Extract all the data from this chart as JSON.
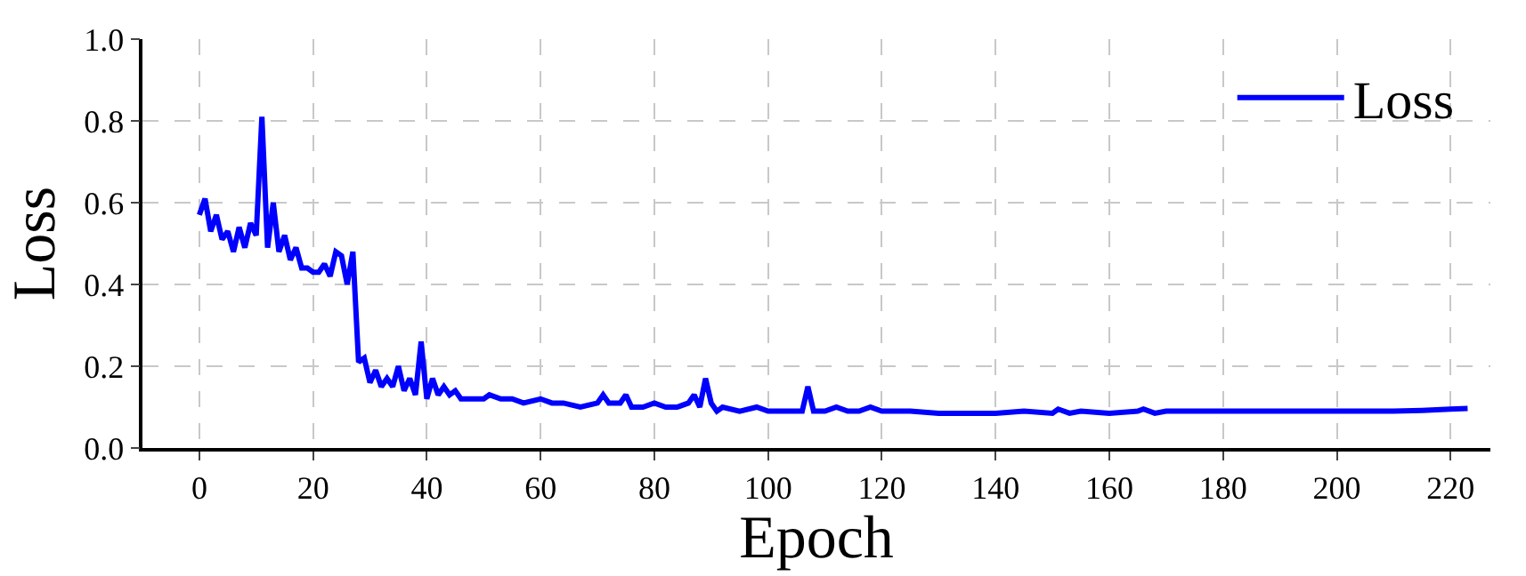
{
  "chart_data": {
    "type": "line",
    "xlabel": "Epoch",
    "ylabel": "Loss",
    "xlim": [
      -10,
      227
    ],
    "ylim": [
      0,
      1
    ],
    "xticks": [
      0,
      20,
      40,
      60,
      80,
      100,
      120,
      140,
      160,
      180,
      200,
      220
    ],
    "yticks": [
      {
        "value": 0,
        "label": "0.0"
      },
      0.2,
      0.4,
      0.6,
      0.8,
      {
        "value": 1,
        "label": "1.0"
      }
    ],
    "grid": true,
    "legend": "top right",
    "line_style": "solid",
    "marker": "none",
    "series": [
      {
        "name": "Loss",
        "color": "#0000ff",
        "x": [
          0,
          1,
          2,
          3,
          4,
          5,
          6,
          7,
          8,
          9,
          10,
          11,
          12,
          13,
          14,
          15,
          16,
          17,
          18,
          19,
          20,
          21,
          22,
          23,
          24,
          25,
          26,
          27,
          28,
          29,
          30,
          31,
          32,
          33,
          34,
          35,
          36,
          37,
          38,
          39,
          40,
          41,
          42,
          43,
          44,
          45,
          46,
          48,
          50,
          51,
          53,
          55,
          57,
          60,
          62,
          64,
          67,
          70,
          71,
          72,
          74,
          75,
          76,
          78,
          80,
          82,
          84,
          86,
          87,
          88,
          89,
          90,
          91,
          92,
          95,
          98,
          100,
          103,
          106,
          107,
          108,
          110,
          112,
          114,
          116,
          118,
          120,
          125,
          130,
          135,
          140,
          145,
          150,
          151,
          153,
          155,
          160,
          165,
          166,
          168,
          170,
          175,
          180,
          185,
          190,
          195,
          200,
          205,
          210,
          215,
          220,
          223
        ],
        "values": [
          0.57,
          0.61,
          0.53,
          0.57,
          0.51,
          0.53,
          0.48,
          0.54,
          0.49,
          0.55,
          0.52,
          0.81,
          0.49,
          0.6,
          0.48,
          0.52,
          0.46,
          0.49,
          0.44,
          0.44,
          0.43,
          0.43,
          0.45,
          0.42,
          0.48,
          0.47,
          0.4,
          0.48,
          0.21,
          0.22,
          0.16,
          0.19,
          0.15,
          0.17,
          0.15,
          0.2,
          0.14,
          0.17,
          0.13,
          0.26,
          0.12,
          0.17,
          0.13,
          0.15,
          0.13,
          0.14,
          0.12,
          0.12,
          0.12,
          0.13,
          0.12,
          0.12,
          0.11,
          0.12,
          0.11,
          0.11,
          0.1,
          0.11,
          0.13,
          0.11,
          0.11,
          0.13,
          0.1,
          0.1,
          0.11,
          0.1,
          0.1,
          0.11,
          0.13,
          0.1,
          0.17,
          0.11,
          0.09,
          0.1,
          0.09,
          0.1,
          0.09,
          0.09,
          0.09,
          0.15,
          0.09,
          0.09,
          0.1,
          0.09,
          0.09,
          0.1,
          0.09,
          0.09,
          0.085,
          0.085,
          0.085,
          0.09,
          0.085,
          0.095,
          0.085,
          0.09,
          0.085,
          0.09,
          0.095,
          0.085,
          0.09,
          0.09,
          0.09,
          0.09,
          0.09,
          0.09,
          0.09,
          0.09,
          0.09,
          0.092,
          0.095,
          0.097
        ]
      }
    ]
  }
}
